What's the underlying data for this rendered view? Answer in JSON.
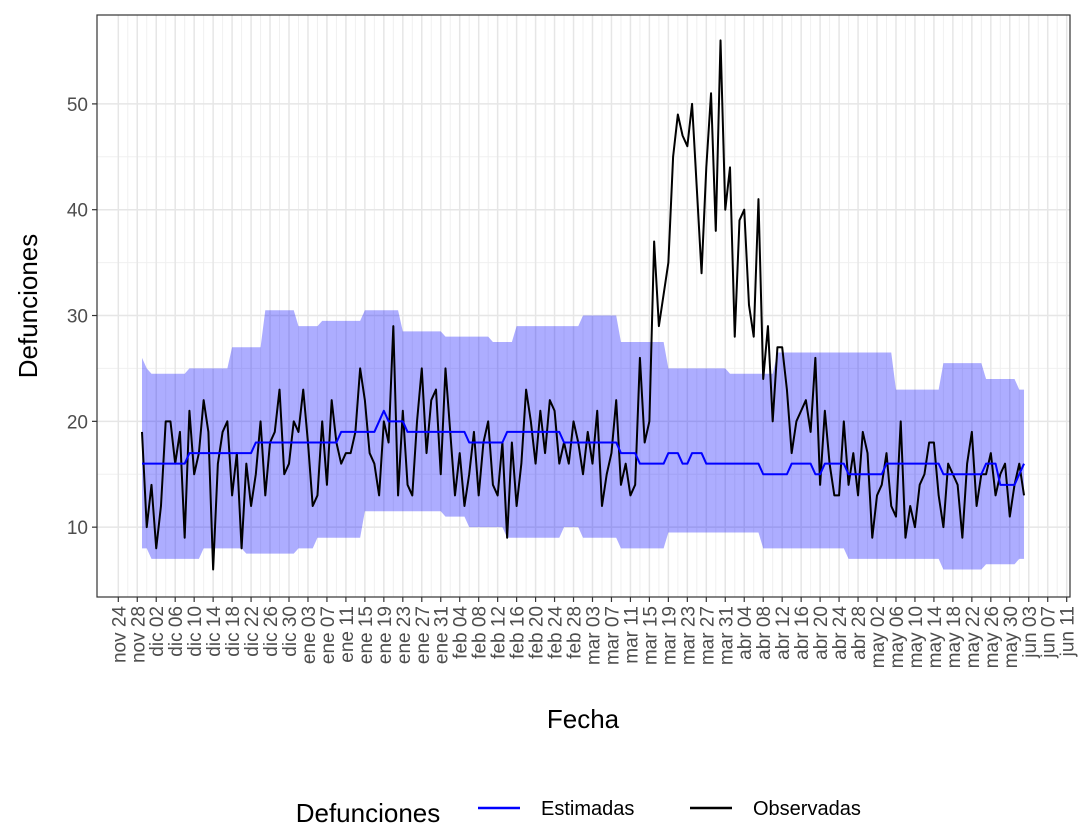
{
  "chart_data": {
    "type": "line",
    "x_label": "Fecha",
    "y_label": "Defunciones",
    "legend_title": "Defunciones",
    "legend_position": "bottom",
    "grid": true,
    "x": [
      "nov 29",
      "nov 30",
      "dic 01",
      "dic 02",
      "dic 03",
      "dic 04",
      "dic 05",
      "dic 06",
      "dic 07",
      "dic 08",
      "dic 09",
      "dic 10",
      "dic 11",
      "dic 12",
      "dic 13",
      "dic 14",
      "dic 15",
      "dic 16",
      "dic 17",
      "dic 18",
      "dic 19",
      "dic 20",
      "dic 21",
      "dic 22",
      "dic 23",
      "dic 24",
      "dic 25",
      "dic 26",
      "dic 27",
      "dic 28",
      "dic 29",
      "dic 30",
      "dic 31",
      "ene 01",
      "ene 02",
      "ene 03",
      "ene 04",
      "ene 05",
      "ene 06",
      "ene 07",
      "ene 08",
      "ene 09",
      "ene 10",
      "ene 11",
      "ene 12",
      "ene 13",
      "ene 14",
      "ene 15",
      "ene 16",
      "ene 17",
      "ene 18",
      "ene 19",
      "ene 20",
      "ene 21",
      "ene 22",
      "ene 23",
      "ene 24",
      "ene 25",
      "ene 26",
      "ene 27",
      "ene 28",
      "ene 29",
      "ene 30",
      "ene 31",
      "feb 01",
      "feb 02",
      "feb 03",
      "feb 04",
      "feb 05",
      "feb 06",
      "feb 07",
      "feb 08",
      "feb 09",
      "feb 10",
      "feb 11",
      "feb 12",
      "feb 13",
      "feb 14",
      "feb 15",
      "feb 16",
      "feb 17",
      "feb 18",
      "feb 19",
      "feb 20",
      "feb 21",
      "feb 22",
      "feb 23",
      "feb 24",
      "feb 25",
      "feb 26",
      "feb 27",
      "feb 28",
      "feb 29",
      "mar 01",
      "mar 02",
      "mar 03",
      "mar 04",
      "mar 05",
      "mar 06",
      "mar 07",
      "mar 08",
      "mar 09",
      "mar 10",
      "mar 11",
      "mar 12",
      "mar 13",
      "mar 14",
      "mar 15",
      "mar 16",
      "mar 17",
      "mar 18",
      "mar 19",
      "mar 20",
      "mar 21",
      "mar 22",
      "mar 23",
      "mar 24",
      "mar 25",
      "mar 26",
      "mar 27",
      "mar 28",
      "mar 29",
      "mar 30",
      "mar 31",
      "abr 01",
      "abr 02",
      "abr 03",
      "abr 04",
      "abr 05",
      "abr 06",
      "abr 07",
      "abr 08",
      "abr 09",
      "abr 10",
      "abr 11",
      "abr 12",
      "abr 13",
      "abr 14",
      "abr 15",
      "abr 16",
      "abr 17",
      "abr 18",
      "abr 19",
      "abr 20",
      "abr 21",
      "abr 22",
      "abr 23",
      "abr 24",
      "abr 25",
      "abr 26",
      "abr 27",
      "abr 28",
      "abr 29",
      "abr 30",
      "may 01",
      "may 02",
      "may 03",
      "may 04",
      "may 05",
      "may 06",
      "may 07",
      "may 08",
      "may 09",
      "may 10",
      "may 11",
      "may 12",
      "may 13",
      "may 14",
      "may 15",
      "may 16",
      "may 17",
      "may 18",
      "may 19",
      "may 20",
      "may 21",
      "may 22",
      "may 23",
      "may 24",
      "may 25",
      "may 26",
      "may 27",
      "may 28",
      "may 29",
      "may 30",
      "may 31",
      "jun 01",
      "jun 02"
    ],
    "xticks": [
      "nov 24",
      "nov 28",
      "dic 02",
      "dic 06",
      "dic 10",
      "dic 14",
      "dic 18",
      "dic 22",
      "dic 26",
      "dic 30",
      "ene 03",
      "ene 07",
      "ene 11",
      "ene 15",
      "ene 19",
      "ene 23",
      "ene 27",
      "ene 31",
      "feb 04",
      "feb 08",
      "feb 12",
      "feb 16",
      "feb 20",
      "feb 24",
      "feb 28",
      "mar 03",
      "mar 07",
      "mar 11",
      "mar 15",
      "mar 19",
      "mar 23",
      "mar 27",
      "mar 31",
      "abr 04",
      "abr 08",
      "abr 12",
      "abr 16",
      "abr 20",
      "abr 24",
      "abr 28",
      "may 02",
      "may 06",
      "may 10",
      "may 14",
      "may 18",
      "may 22",
      "may 26",
      "may 30",
      "jun 03",
      "jun 07",
      "jun 11"
    ],
    "ylim": [
      3.4,
      58.4
    ],
    "yticks": [
      10,
      20,
      30,
      40,
      50
    ],
    "band_color": "#0000ff",
    "band_lower": [
      8,
      8,
      7,
      7,
      7,
      7,
      7,
      7,
      7,
      7,
      7,
      7,
      7,
      8,
      8,
      8,
      8,
      8,
      8,
      8,
      8,
      8,
      7.5,
      7.5,
      7.5,
      7.5,
      7.5,
      7.5,
      7.5,
      7.5,
      7.5,
      7.5,
      7.5,
      8,
      8,
      8,
      8,
      9,
      9,
      9,
      9,
      9,
      9,
      9,
      9,
      9,
      9,
      11.5,
      11.5,
      11.5,
      11.5,
      11.5,
      11.5,
      11.5,
      11.5,
      11.5,
      11.5,
      11.5,
      11.5,
      11.5,
      11.5,
      11.5,
      11.5,
      11.5,
      11,
      11,
      11,
      11,
      11,
      10,
      10,
      10,
      10,
      10,
      10,
      10,
      10,
      9,
      9,
      9,
      9,
      9,
      9,
      9,
      9,
      9,
      9,
      9,
      9,
      10,
      10,
      10,
      10,
      9,
      9,
      9,
      9,
      9,
      9,
      9,
      9,
      8,
      8,
      8,
      8,
      8,
      8,
      8,
      8,
      8,
      8,
      9.5,
      9.5,
      9.5,
      9.5,
      9.5,
      9.5,
      9.5,
      9.5,
      9.5,
      9.5,
      9.5,
      9.5,
      9.5,
      9.5,
      9.5,
      9.5,
      9.5,
      9.5,
      9.5,
      9.5,
      8,
      8,
      8,
      8,
      8,
      8,
      8,
      8,
      8,
      8,
      8,
      8,
      8,
      8,
      8,
      8,
      8,
      8,
      7,
      7,
      7,
      7,
      7,
      7,
      7,
      7,
      7,
      7,
      7,
      7,
      7,
      7,
      7,
      7,
      7,
      7,
      7,
      7,
      6,
      6,
      6,
      6,
      6,
      6,
      6,
      6,
      6,
      6.5,
      6.5,
      6.5,
      6.5,
      6.5,
      6.5,
      6.5,
      7,
      7
    ],
    "band_upper": [
      26,
      25,
      24.5,
      24.5,
      24.5,
      24.5,
      24.5,
      24.5,
      24.5,
      24.5,
      25,
      25,
      25,
      25,
      25,
      25,
      25,
      25,
      25,
      27,
      27,
      27,
      27,
      27,
      27,
      27,
      30.5,
      30.5,
      30.5,
      30.5,
      30.5,
      30.5,
      30.5,
      29,
      29,
      29,
      29,
      29,
      29.5,
      29.5,
      29.5,
      29.5,
      29.5,
      29.5,
      29.5,
      29.5,
      29.5,
      30.5,
      30.5,
      30.5,
      30.5,
      30.5,
      30.5,
      30.5,
      30.5,
      28.5,
      28.5,
      28.5,
      28.5,
      28.5,
      28.5,
      28.5,
      28.5,
      28.5,
      28,
      28,
      28,
      28,
      28,
      28,
      28,
      28,
      28,
      28,
      27.5,
      27.5,
      27.5,
      27.5,
      27.5,
      29,
      29,
      29,
      29,
      29,
      29,
      29,
      29,
      29,
      29,
      29,
      29,
      29,
      29,
      30,
      30,
      30,
      30,
      30,
      30,
      30,
      30,
      27.5,
      27.5,
      27.5,
      27.5,
      27.5,
      27.5,
      27.5,
      27.5,
      27.5,
      27.5,
      25,
      25,
      25,
      25,
      25,
      25,
      25,
      25,
      25,
      25,
      25,
      25,
      25,
      24.5,
      24.5,
      24.5,
      24.5,
      24.5,
      24.5,
      24.5,
      24.5,
      24.5,
      24.5,
      26.5,
      26.5,
      26.5,
      26.5,
      26.5,
      26.5,
      26.5,
      26.5,
      26.5,
      26.5,
      26.5,
      26.5,
      26.5,
      26.5,
      26.5,
      26.5,
      26.5,
      26.5,
      26.5,
      26.5,
      26.5,
      26.5,
      26.5,
      26.5,
      26.5,
      23,
      23,
      23,
      23,
      23,
      23,
      23,
      23,
      23,
      23,
      25.5,
      25.5,
      25.5,
      25.5,
      25.5,
      25.5,
      25.5,
      25.5,
      25.5,
      24,
      24,
      24,
      24,
      24,
      24,
      24,
      23,
      23
    ],
    "series": [
      {
        "name": "Estimadas",
        "color": "#0000ff",
        "values": [
          16,
          16,
          16,
          16,
          16,
          16,
          16,
          16,
          16,
          16,
          17,
          17,
          17,
          17,
          17,
          17,
          17,
          17,
          17,
          17,
          17,
          17,
          17,
          17,
          18,
          18,
          18,
          18,
          18,
          18,
          18,
          18,
          18,
          18,
          18,
          18,
          18,
          18,
          18,
          18,
          18,
          18,
          19,
          19,
          19,
          19,
          19,
          19,
          19,
          19,
          20,
          21,
          20,
          20,
          20,
          20,
          19,
          19,
          19,
          19,
          19,
          19,
          19,
          19,
          19,
          19,
          19,
          19,
          19,
          18,
          18,
          18,
          18,
          18,
          18,
          18,
          18,
          19,
          19,
          19,
          19,
          19,
          19,
          19,
          19,
          19,
          19,
          19,
          19,
          18,
          18,
          18,
          18,
          18,
          18,
          18,
          18,
          18,
          18,
          18,
          18,
          17,
          17,
          17,
          17,
          16,
          16,
          16,
          16,
          16,
          16,
          17,
          17,
          17,
          16,
          16,
          17,
          17,
          17,
          16,
          16,
          16,
          16,
          16,
          16,
          16,
          16,
          16,
          16,
          16,
          16,
          15,
          15,
          15,
          15,
          15,
          15,
          16,
          16,
          16,
          16,
          16,
          15,
          15,
          16,
          16,
          16,
          16,
          16,
          15,
          15,
          15,
          15,
          15,
          15,
          15,
          15,
          16,
          16,
          16,
          16,
          16,
          16,
          16,
          16,
          16,
          16,
          16,
          16,
          15,
          15,
          15,
          15,
          15,
          15,
          15,
          15,
          15,
          16,
          16,
          16,
          14,
          14,
          14,
          14,
          15,
          16
        ]
      },
      {
        "name": "Observadas",
        "color": "#000000",
        "values": [
          19,
          10,
          14,
          8,
          12,
          20,
          20,
          16,
          19,
          9,
          21,
          15,
          17,
          22,
          19,
          6,
          16,
          19,
          20,
          13,
          17,
          8,
          16,
          12,
          15,
          20,
          13,
          18,
          19,
          23,
          15,
          16,
          20,
          19,
          23,
          18,
          12,
          13,
          20,
          14,
          22,
          18,
          16,
          17,
          17,
          19,
          25,
          22,
          17,
          16,
          13,
          20,
          18,
          29,
          13,
          21,
          14,
          13,
          20,
          25,
          17,
          22,
          23,
          15,
          25,
          19,
          13,
          17,
          12,
          15,
          19,
          13,
          18,
          20,
          14,
          13,
          18,
          9,
          18,
          12,
          16,
          23,
          20,
          16,
          21,
          17,
          22,
          21,
          16,
          18,
          16,
          20,
          18,
          15,
          19,
          16,
          21,
          12,
          15,
          17,
          22,
          14,
          16,
          13,
          14,
          26,
          18,
          20,
          37,
          29,
          32,
          35,
          45,
          49,
          47,
          46,
          50,
          42,
          34,
          44,
          51,
          38,
          56,
          40,
          44,
          28,
          39,
          40,
          31,
          28,
          41,
          24,
          29,
          20,
          27,
          27,
          23,
          17,
          20,
          21,
          22,
          19,
          26,
          14,
          21,
          16,
          13,
          13,
          20,
          14,
          17,
          13,
          19,
          17,
          9,
          13,
          14,
          17,
          12,
          11,
          20,
          9,
          12,
          10,
          14,
          15,
          18,
          18,
          13,
          10,
          16,
          15,
          14,
          9,
          16,
          19,
          12,
          15,
          15,
          17,
          13,
          15,
          16,
          11,
          14,
          16,
          13
        ]
      }
    ]
  }
}
